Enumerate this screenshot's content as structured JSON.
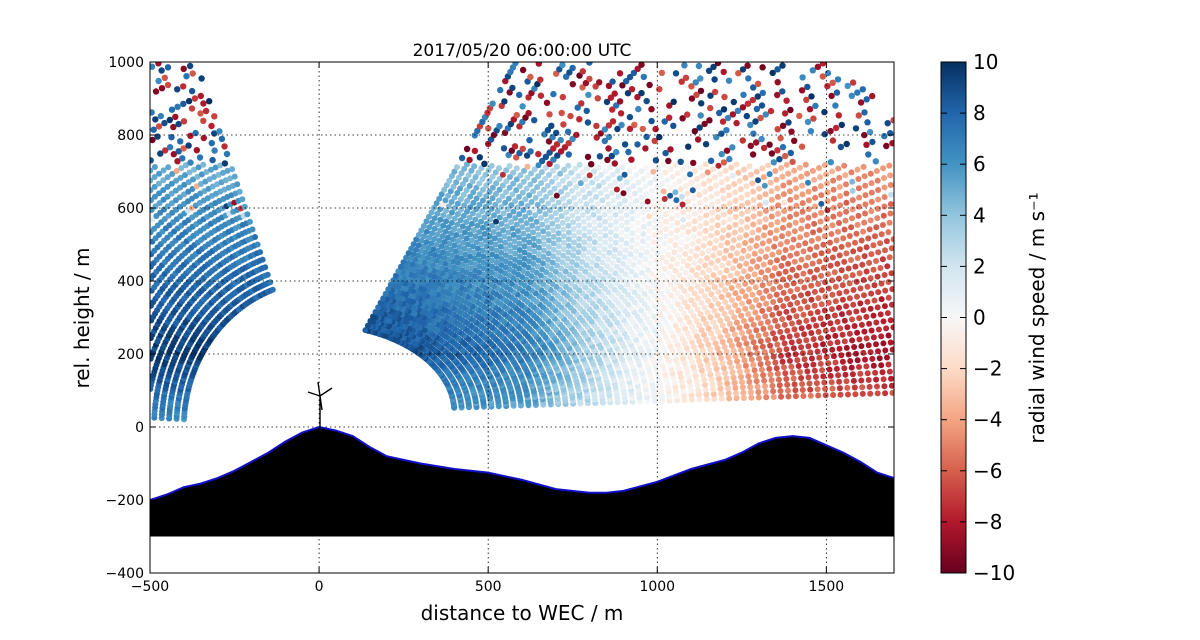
{
  "chart_data": {
    "type": "scatter",
    "title": "2017/05/20 06:00:00 UTC",
    "xlabel": "distance to WEC / m",
    "ylabel": "rel. height / m",
    "xlim": [
      -500,
      1700
    ],
    "ylim": [
      -400,
      1000
    ],
    "xticks": [
      -500,
      0,
      500,
      1000,
      1500
    ],
    "yticks": [
      -400,
      -200,
      0,
      200,
      400,
      600,
      800,
      1000
    ],
    "grid": true,
    "scanner_position": [
      0,
      0
    ],
    "scan_elevation_range_deg": [
      3,
      70
    ],
    "velocity_field": {
      "flow_reversal_x": 1000,
      "jet_height": 200,
      "max_abs_speed": 10,
      "sign_left": 1,
      "sign_right": -1
    },
    "terrain": {
      "base": -300,
      "x": [
        -500,
        -450,
        -400,
        -350,
        -300,
        -250,
        -200,
        -150,
        -100,
        -50,
        0,
        50,
        100,
        150,
        200,
        300,
        400,
        500,
        600,
        700,
        800,
        850,
        900,
        1000,
        1100,
        1200,
        1250,
        1300,
        1350,
        1400,
        1450,
        1500,
        1550,
        1600,
        1650,
        1700
      ],
      "y": [
        -200,
        -185,
        -165,
        -155,
        -140,
        -120,
        -95,
        -70,
        -40,
        -15,
        0,
        -10,
        -25,
        -55,
        -80,
        -100,
        -115,
        -125,
        -145,
        -170,
        -180,
        -180,
        -175,
        -150,
        -115,
        -90,
        -70,
        -45,
        -30,
        -25,
        -30,
        -50,
        -70,
        -95,
        -125,
        -140
      ]
    },
    "colorbar": {
      "label": "radial wind speed / m s⁻¹",
      "min": -10,
      "max": 10,
      "ticks": [
        "10",
        "8",
        "6",
        "4",
        "2",
        "0",
        "−2",
        "−4",
        "−6",
        "−8",
        "−10"
      ],
      "colormap": [
        "#67001f",
        "#b2182b",
        "#d6604d",
        "#f4a582",
        "#fddbc7",
        "#f7f7f7",
        "#d1e5f0",
        "#92c5de",
        "#4393c3",
        "#2166ac",
        "#053061"
      ]
    }
  }
}
